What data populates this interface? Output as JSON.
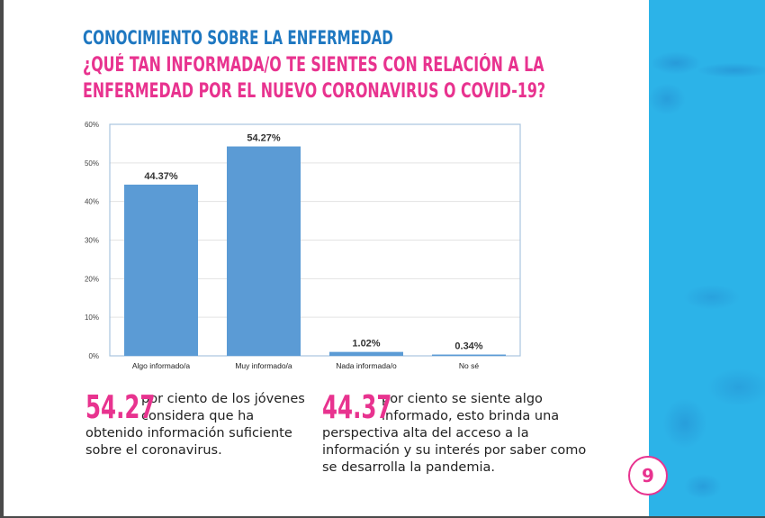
{
  "section_title": "CONOCIMIENTO SOBRE LA ENFERMEDAD",
  "question_line1": "¿QUÉ TAN INFORMADA/O TE SIENTES CON RELACIÓN A LA",
  "question_line2": "ENFERMEDAD POR EL NUEVO CORONAVIRUS O COVID-19?",
  "colors": {
    "section": "#1f78c1",
    "accent": "#e8338f",
    "bar": "#5b9bd5",
    "panel": "#2cb3e8"
  },
  "chart_data": {
    "type": "bar",
    "title": "",
    "xlabel": "",
    "ylabel": "",
    "categories": [
      "Algo informado/a",
      "Muy informado/a",
      "Nada informada/o",
      "No sé"
    ],
    "values": [
      44.37,
      54.27,
      1.02,
      0.34
    ],
    "data_labels": [
      "44.37%",
      "54.27%",
      "1.02%",
      "0.34%"
    ],
    "ylim": [
      0,
      60
    ],
    "yticks": [
      0,
      10,
      20,
      30,
      40,
      50,
      60
    ],
    "ytick_labels": [
      "0%",
      "10%",
      "20%",
      "30%",
      "40%",
      "50%",
      "60%"
    ],
    "grid": true,
    "legend": "none"
  },
  "stats": [
    {
      "number": "54.27",
      "text": "por ciento de los jóvenes considera que ha obtenido información suficiente sobre el coronavirus."
    },
    {
      "number": "44.37",
      "text": "por ciento se siente algo informado, esto brinda una perspectiva alta del acceso a la información y su interés por saber como se desarrolla la pandemia."
    }
  ],
  "page_number": "9"
}
